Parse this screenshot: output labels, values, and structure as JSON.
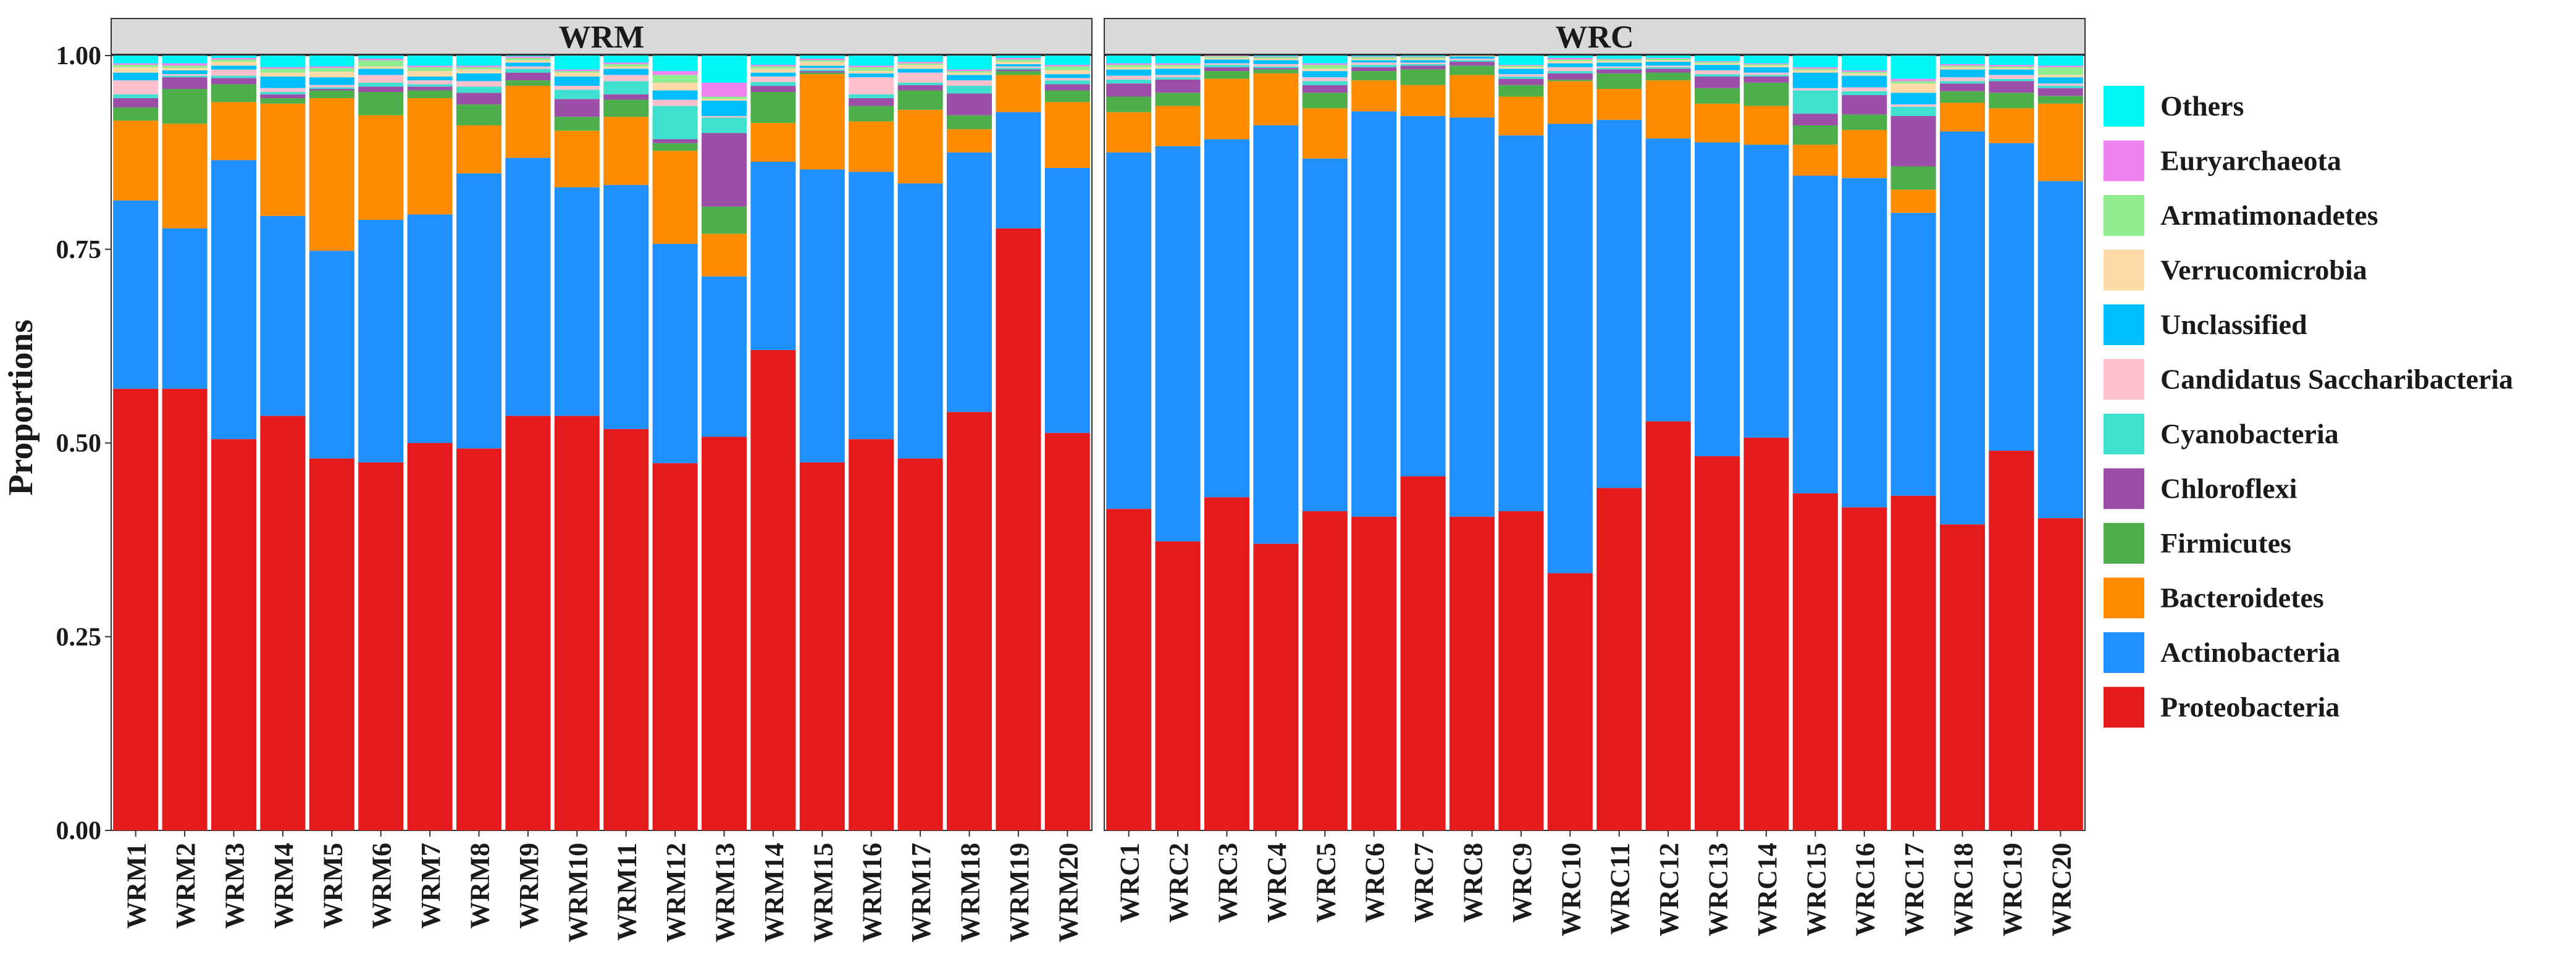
{
  "chart_data": {
    "type": "bar",
    "stacked": true,
    "ylabel": "Proportions",
    "ylim": [
      0,
      1
    ],
    "yticks": [
      0,
      0.25,
      0.5,
      0.75,
      1.0
    ],
    "ytick_labels": [
      "0.00",
      "0.25",
      "0.50",
      "0.75",
      "1.00"
    ],
    "legend_position": "right",
    "legend": [
      {
        "name": "Others",
        "color": "#00F5F5"
      },
      {
        "name": "Euryarchaeota",
        "color": "#EE82EE"
      },
      {
        "name": "Armatimonadetes",
        "color": "#90EE90"
      },
      {
        "name": "Verrucomicrobia",
        "color": "#FFDAA6"
      },
      {
        "name": "Unclassified",
        "color": "#00BFFF"
      },
      {
        "name": "Candidatus Saccharibacteria",
        "color": "#FFC0CB"
      },
      {
        "name": "Cyanobacteria",
        "color": "#40E0D0"
      },
      {
        "name": "Chloroflexi",
        "color": "#9B4FA8"
      },
      {
        "name": "Firmicutes",
        "color": "#4DAF4A"
      },
      {
        "name": "Bacteroidetes",
        "color": "#FF8C00"
      },
      {
        "name": "Actinobacteria",
        "color": "#1E90FF"
      },
      {
        "name": "Proteobacteria",
        "color": "#E41A1C"
      }
    ],
    "stack_order": [
      "Proteobacteria",
      "Actinobacteria",
      "Bacteroidetes",
      "Firmicutes",
      "Chloroflexi",
      "Cyanobacteria",
      "Candidatus Saccharibacteria",
      "Unclassified",
      "Verrucomicrobia",
      "Armatimonadetes",
      "Euryarchaeota",
      "Others"
    ],
    "panels": [
      {
        "title": "WRM",
        "categories": [
          "WRM1",
          "WRM2",
          "WRM3",
          "WRM4",
          "WRM5",
          "WRM6",
          "WRM7",
          "WRM8",
          "WRM9",
          "WRM10",
          "WRM11",
          "WRM12",
          "WRM13",
          "WRM14",
          "WRM15",
          "WRM16",
          "WRM17",
          "WRM18",
          "WRM19",
          "WRM20"
        ],
        "series": [
          {
            "name": "Proteobacteria",
            "values": [
              0.57,
              0.57,
              0.505,
              0.535,
              0.48,
              0.475,
              0.5,
              0.493,
              0.535,
              0.535,
              0.518,
              0.474,
              0.508,
              0.62,
              0.475,
              0.505,
              0.48,
              0.54,
              0.777,
              0.513
            ]
          },
          {
            "name": "Actinobacteria",
            "values": [
              0.243,
              0.207,
              0.36,
              0.258,
              0.268,
              0.313,
              0.295,
              0.355,
              0.333,
              0.295,
              0.315,
              0.283,
              0.207,
              0.243,
              0.378,
              0.345,
              0.355,
              0.335,
              0.15,
              0.342
            ]
          },
          {
            "name": "Bacteroidetes",
            "values": [
              0.103,
              0.135,
              0.075,
              0.145,
              0.197,
              0.135,
              0.15,
              0.062,
              0.093,
              0.073,
              0.088,
              0.12,
              0.055,
              0.05,
              0.123,
              0.065,
              0.095,
              0.03,
              0.048,
              0.085
            ]
          },
          {
            "name": "Firmicutes",
            "values": [
              0.017,
              0.045,
              0.023,
              0.007,
              0.01,
              0.03,
              0.01,
              0.027,
              0.007,
              0.018,
              0.022,
              0.01,
              0.035,
              0.04,
              0.002,
              0.02,
              0.025,
              0.018,
              0.005,
              0.015
            ]
          },
          {
            "name": "Chloroflexi",
            "values": [
              0.012,
              0.015,
              0.008,
              0.005,
              0.002,
              0.007,
              0.005,
              0.015,
              0.01,
              0.023,
              0.007,
              0.005,
              0.095,
              0.008,
              0.002,
              0.01,
              0.007,
              0.028,
              0.002,
              0.008
            ]
          },
          {
            "name": "Cyanobacteria",
            "values": [
              0.005,
              0.002,
              0.003,
              0.003,
              0.002,
              0.005,
              0.003,
              0.008,
              0.005,
              0.012,
              0.017,
              0.043,
              0.02,
              0.005,
              0.002,
              0.005,
              0.003,
              0.01,
              0.002,
              0.005
            ]
          },
          {
            "name": "Candidatus Saccharibacteria",
            "values": [
              0.018,
              0.002,
              0.008,
              0.005,
              0.003,
              0.01,
              0.005,
              0.007,
              0.003,
              0.005,
              0.008,
              0.008,
              0.002,
              0.007,
              0.002,
              0.022,
              0.013,
              0.007,
              0.002,
              0.003
            ]
          },
          {
            "name": "Unclassified",
            "values": [
              0.01,
              0.005,
              0.005,
              0.015,
              0.01,
              0.008,
              0.005,
              0.01,
              0.005,
              0.012,
              0.008,
              0.012,
              0.02,
              0.005,
              0.003,
              0.005,
              0.005,
              0.007,
              0.003,
              0.005
            ]
          },
          {
            "name": "Verrucomicrobia",
            "values": [
              0.007,
              0.003,
              0.005,
              0.005,
              0.007,
              0.003,
              0.007,
              0.005,
              0.003,
              0.005,
              0.003,
              0.01,
              0.002,
              0.005,
              0.005,
              0.003,
              0.005,
              0.003,
              0.003,
              0.005
            ]
          },
          {
            "name": "Armatimonadetes",
            "values": [
              0.003,
              0.003,
              0.003,
              0.005,
              0.005,
              0.008,
              0.005,
              0.003,
              0.003,
              0.002,
              0.003,
              0.01,
              0.003,
              0.003,
              0.002,
              0.005,
              0.002,
              0.002,
              0.003,
              0.005
            ]
          },
          {
            "name": "Euryarchaeota",
            "values": [
              0.002,
              0.003,
              0.002,
              0.002,
              0.002,
              0.002,
              0.002,
              0.002,
              0.002,
              0.002,
              0.002,
              0.005,
              0.018,
              0.002,
              0.002,
              0.002,
              0.002,
              0.002,
              0.002,
              0.002
            ]
          },
          {
            "name": "Others",
            "values": [
              0.01,
              0.01,
              0.003,
              0.015,
              0.014,
              0.004,
              0.013,
              0.013,
              0.001,
              0.018,
              0.009,
              0.02,
              0.035,
              0.012,
              0.004,
              0.013,
              0.008,
              0.018,
              0.003,
              0.012
            ]
          }
        ]
      },
      {
        "title": "WRC",
        "categories": [
          "WRC1",
          "WRC2",
          "WRC3",
          "WRC4",
          "WRC5",
          "WRC6",
          "WRC7",
          "WRC8",
          "WRC9",
          "WRC10",
          "WRC11",
          "WRC12",
          "WRC13",
          "WRC14",
          "WRC15",
          "WRC16",
          "WRC17",
          "WRC18",
          "WRC19",
          "WRC20"
        ],
        "series": [
          {
            "name": "Proteobacteria",
            "values": [
              0.415,
              0.373,
              0.43,
              0.37,
              0.412,
              0.405,
              0.457,
              0.405,
              0.412,
              0.332,
              0.442,
              0.528,
              0.483,
              0.507,
              0.435,
              0.417,
              0.432,
              0.395,
              0.49,
              0.403
            ]
          },
          {
            "name": "Actinobacteria",
            "values": [
              0.46,
              0.51,
              0.462,
              0.54,
              0.455,
              0.523,
              0.465,
              0.515,
              0.485,
              0.58,
              0.475,
              0.365,
              0.405,
              0.378,
              0.41,
              0.425,
              0.365,
              0.507,
              0.397,
              0.435
            ]
          },
          {
            "name": "Bacteroidetes",
            "values": [
              0.052,
              0.052,
              0.078,
              0.067,
              0.065,
              0.04,
              0.04,
              0.055,
              0.05,
              0.055,
              0.04,
              0.075,
              0.05,
              0.05,
              0.04,
              0.062,
              0.03,
              0.037,
              0.045,
              0.1
            ]
          },
          {
            "name": "Firmicutes",
            "values": [
              0.02,
              0.017,
              0.01,
              0.005,
              0.02,
              0.012,
              0.02,
              0.012,
              0.015,
              0.002,
              0.02,
              0.01,
              0.02,
              0.03,
              0.025,
              0.02,
              0.03,
              0.015,
              0.02,
              0.01
            ]
          },
          {
            "name": "Chloroflexi",
            "values": [
              0.017,
              0.017,
              0.005,
              0.002,
              0.01,
              0.005,
              0.005,
              0.005,
              0.008,
              0.008,
              0.005,
              0.005,
              0.015,
              0.008,
              0.015,
              0.025,
              0.065,
              0.01,
              0.015,
              0.01
            ]
          },
          {
            "name": "Cyanobacteria",
            "values": [
              0.005,
              0.003,
              0.003,
              0.002,
              0.005,
              0.003,
              0.002,
              0.002,
              0.003,
              0.003,
              0.002,
              0.002,
              0.003,
              0.002,
              0.03,
              0.005,
              0.012,
              0.003,
              0.003,
              0.003
            ]
          },
          {
            "name": "Candidatus Saccharibacteria",
            "values": [
              0.005,
              0.003,
              0.002,
              0.003,
              0.005,
              0.003,
              0.002,
              0.002,
              0.003,
              0.005,
              0.002,
              0.002,
              0.005,
              0.003,
              0.003,
              0.005,
              0.003,
              0.005,
              0.005,
              0.003
            ]
          },
          {
            "name": "Unclassified",
            "values": [
              0.008,
              0.008,
              0.005,
              0.005,
              0.008,
              0.003,
              0.003,
              0.003,
              0.007,
              0.005,
              0.005,
              0.005,
              0.007,
              0.007,
              0.02,
              0.015,
              0.015,
              0.01,
              0.007,
              0.008
            ]
          },
          {
            "name": "Verrucomicrobia",
            "values": [
              0.003,
              0.003,
              0.002,
              0.002,
              0.003,
              0.002,
              0.002,
              0.002,
              0.002,
              0.003,
              0.002,
              0.002,
              0.002,
              0.002,
              0.003,
              0.003,
              0.012,
              0.003,
              0.002,
              0.003
            ]
          },
          {
            "name": "Armatimonadetes",
            "values": [
              0.003,
              0.002,
              0.002,
              0.002,
              0.005,
              0.002,
              0.002,
              0.002,
              0.002,
              0.002,
              0.002,
              0.002,
              0.002,
              0.002,
              0.002,
              0.002,
              0.003,
              0.002,
              0.002,
              0.01
            ]
          },
          {
            "name": "Euryarchaeota",
            "values": [
              0.002,
              0.002,
              0.001,
              0.001,
              0.002,
              0.001,
              0.001,
              0.001,
              0.001,
              0.002,
              0.001,
              0.001,
              0.001,
              0.001,
              0.002,
              0.002,
              0.003,
              0.002,
              0.002,
              0.002
            ]
          },
          {
            "name": "Others",
            "values": [
              0.01,
              0.01,
              0.0,
              0.001,
              0.01,
              0.001,
              0.001,
              0.001,
              0.012,
              0.003,
              0.004,
              0.003,
              0.007,
              0.01,
              0.015,
              0.019,
              0.03,
              0.011,
              0.012,
              0.013
            ]
          }
        ]
      }
    ]
  }
}
